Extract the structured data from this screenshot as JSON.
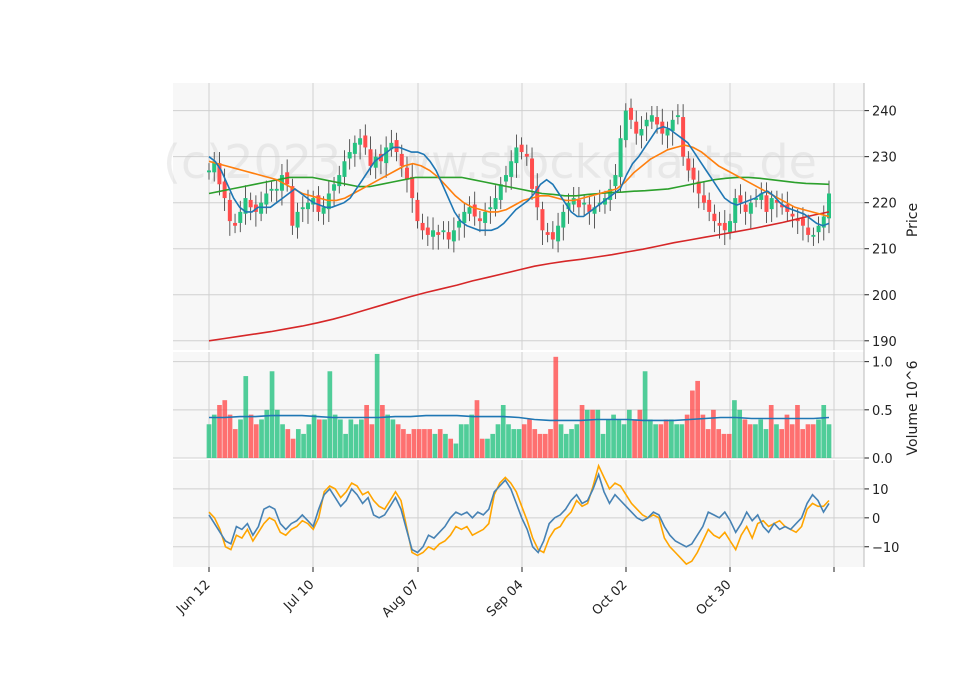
{
  "watermark": "(c)2023 www.stockcharts.de",
  "colors": {
    "up": "#26c281",
    "down": "#ff4d4d",
    "sma10": "#1f77b4",
    "sma20": "#ff7f0e",
    "sma50": "#2ca02c",
    "sma200": "#d62728",
    "vol_avg": "#1f77b4",
    "osc1": "#4682b4",
    "osc2": "#ffa500",
    "panel_bg": "#f7f7f7",
    "grid": "#d0d0d0"
  },
  "chart_data": {
    "type": "candlestick",
    "x_tick_labels": [
      "Jun 12",
      "Jul 10",
      "Aug 07",
      "Sep 04",
      "Oct 02",
      "Oct 30"
    ],
    "price_panel": {
      "ylabel": "Price",
      "ylim": [
        188,
        246
      ],
      "yticks": [
        190,
        200,
        210,
        220,
        230,
        240
      ],
      "close": [
        227,
        229,
        224,
        221,
        216,
        215,
        218,
        221,
        219,
        218,
        220,
        222,
        223,
        223,
        226,
        224,
        215,
        218,
        219,
        220,
        221,
        218,
        219,
        222,
        224,
        226,
        229,
        231,
        233,
        234,
        232,
        228,
        230,
        229,
        232,
        233,
        231,
        228,
        225,
        221,
        216,
        214,
        213,
        214,
        213,
        214,
        212,
        214,
        216,
        218,
        219,
        217,
        216,
        218,
        219,
        221,
        224,
        226,
        229,
        232,
        231,
        230,
        223,
        219,
        214,
        213,
        212,
        215,
        218,
        220,
        221,
        219,
        220,
        218,
        219,
        220,
        221,
        223,
        226,
        234,
        240,
        238,
        235,
        236,
        238,
        239,
        237,
        235,
        236,
        238,
        239,
        230,
        227,
        225,
        222,
        220,
        218,
        216,
        215,
        214,
        216,
        221,
        220,
        218,
        220,
        221,
        222,
        218,
        221,
        220,
        219,
        218,
        217,
        216,
        215,
        213,
        213,
        215,
        217,
        222
      ],
      "sma10": [
        230,
        229,
        227,
        224,
        221,
        219,
        218,
        218,
        219,
        219,
        219,
        220,
        221,
        222,
        223,
        222,
        221,
        220,
        219.5,
        219,
        219,
        219.5,
        220,
        221,
        223,
        225,
        227,
        229,
        230,
        231,
        232,
        232,
        231.5,
        231,
        231,
        230.5,
        229,
        227,
        224,
        221,
        218,
        216,
        215,
        214.5,
        214,
        214,
        214,
        214.5,
        215.5,
        217,
        218.5,
        219.5,
        220.5,
        222,
        224,
        225,
        224,
        222,
        220,
        218,
        217,
        217,
        218,
        219,
        220,
        221,
        222,
        223,
        226,
        228.5,
        230,
        232,
        234,
        236,
        236.5,
        236,
        235,
        234,
        233,
        231,
        229,
        227,
        225,
        223,
        221,
        220,
        219.5,
        220,
        220.5,
        221,
        222,
        222.5,
        221.5,
        220,
        219,
        218.5,
        218,
        217.5,
        216.5,
        215.5,
        215,
        215.5
      ],
      "sma20": [
        229,
        228.5,
        228,
        227.5,
        227,
        226.5,
        226,
        225.5,
        225,
        224,
        223,
        222,
        221.5,
        221,
        220.5,
        220.5,
        221,
        222,
        223,
        224,
        225,
        226,
        227,
        228,
        228.5,
        228,
        227,
        225.5,
        223.5,
        221.5,
        220,
        219,
        218.5,
        218,
        218,
        218.5,
        219.5,
        220.5,
        221,
        221.5,
        221.5,
        221,
        220.5,
        220.5,
        221,
        221.5,
        222,
        222.5,
        223,
        224.5,
        226.5,
        228,
        229.5,
        230.5,
        231.5,
        232,
        232.5,
        232,
        231,
        229.5,
        228,
        227,
        226,
        225,
        224,
        223,
        222,
        221,
        220,
        219,
        218.5,
        218,
        217.5,
        217
      ],
      "sma50": [
        222,
        222.5,
        223,
        223.5,
        224,
        224.5,
        225,
        225.5,
        225.5,
        225.5,
        225,
        224.5,
        224,
        223.5,
        223.5,
        224,
        224.5,
        225,
        225.5,
        225.5,
        225.5,
        225.5,
        225.5,
        225,
        224.5,
        224,
        223.5,
        223,
        222.5,
        222,
        221.8,
        221.5,
        221.5,
        221.8,
        222,
        222.2,
        222.3,
        222.5,
        222.6,
        222.8,
        223,
        223.5,
        224,
        224.5,
        225,
        225.3,
        225.5,
        225.5,
        225.3,
        225,
        224.7,
        224.4,
        224.2,
        224.1,
        224
      ],
      "sma200": [
        190,
        190.5,
        191,
        191.5,
        192,
        192.6,
        193.2,
        193.9,
        194.7,
        195.6,
        196.6,
        197.6,
        198.6,
        199.6,
        200.5,
        201.3,
        202.1,
        203,
        203.8,
        204.6,
        205.4,
        206.2,
        206.8,
        207.3,
        207.7,
        208.2,
        208.7,
        209.3,
        209.9,
        210.6,
        211.3,
        211.9,
        212.5,
        213.1,
        213.7,
        214.3,
        215,
        215.7,
        216.5,
        217.3,
        218
      ]
    },
    "volume_panel": {
      "ylabel": "Volume  10^6",
      "ylim": [
        0,
        1.1
      ],
      "yticks": [
        0.0,
        0.5,
        1.0
      ],
      "values": [
        0.35,
        0.45,
        0.55,
        0.6,
        0.45,
        0.3,
        0.4,
        0.85,
        0.45,
        0.35,
        0.4,
        0.5,
        0.9,
        0.5,
        0.35,
        0.3,
        0.2,
        0.3,
        0.25,
        0.35,
        0.45,
        0.4,
        0.4,
        0.9,
        0.45,
        0.4,
        0.25,
        0.4,
        0.35,
        0.4,
        0.55,
        0.35,
        1.08,
        0.55,
        0.45,
        0.4,
        0.35,
        0.3,
        0.25,
        0.3,
        0.3,
        0.3,
        0.3,
        0.25,
        0.3,
        0.25,
        0.2,
        0.15,
        0.35,
        0.35,
        0.45,
        0.6,
        0.2,
        0.2,
        0.25,
        0.35,
        0.55,
        0.35,
        0.3,
        0.3,
        0.35,
        0.4,
        0.3,
        0.25,
        0.25,
        0.3,
        1.05,
        0.35,
        0.25,
        0.3,
        0.35,
        0.55,
        0.5,
        0.5,
        0.5,
        0.25,
        0.4,
        0.45,
        0.4,
        0.35,
        0.5,
        0.4,
        0.5,
        0.9,
        0.4,
        0.35,
        0.35,
        0.4,
        0.4,
        0.35,
        0.35,
        0.45,
        0.7,
        0.8,
        0.45,
        0.3,
        0.5,
        0.3,
        0.25,
        0.25,
        0.6,
        0.5,
        0.4,
        0.35,
        0.35,
        0.4,
        0.3,
        0.55,
        0.35,
        0.3,
        0.45,
        0.35,
        0.55,
        0.3,
        0.35,
        0.35,
        0.4,
        0.55,
        0.35
      ],
      "avg": [
        0.42,
        0.42,
        0.43,
        0.43,
        0.44,
        0.44,
        0.44,
        0.43,
        0.42,
        0.42,
        0.42,
        0.42,
        0.43,
        0.43,
        0.44,
        0.44,
        0.44,
        0.43,
        0.43,
        0.43,
        0.42,
        0.4,
        0.39,
        0.39,
        0.39,
        0.4,
        0.4,
        0.4,
        0.39,
        0.39,
        0.39,
        0.4,
        0.41,
        0.42,
        0.42,
        0.41,
        0.41,
        0.41,
        0.41,
        0.41,
        0.42
      ]
    },
    "oscillator_panel": {
      "ylim": [
        -17,
        20
      ],
      "yticks": [
        -10,
        0,
        10
      ],
      "line1": [
        1,
        -2,
        -5,
        -8,
        -9,
        -3,
        -4,
        -2,
        -6,
        -3,
        3,
        4,
        3,
        -2,
        -4,
        -2,
        -1,
        1,
        -1,
        -3,
        3,
        8,
        10,
        7,
        4,
        6,
        10,
        8,
        5,
        7,
        1,
        0,
        1,
        4,
        7,
        3,
        -4,
        -11,
        -12,
        -10,
        -6,
        -7,
        -5,
        -3,
        0,
        2,
        1,
        2,
        0,
        2,
        1,
        3,
        9,
        11,
        13,
        10,
        5,
        0,
        -4,
        -10,
        -12,
        -8,
        -2,
        0,
        1,
        3,
        6,
        8,
        5,
        6,
        10,
        15,
        9,
        5,
        8,
        6,
        4,
        2,
        0,
        -1,
        0,
        2,
        1,
        -3,
        -6,
        -8,
        -9,
        -10,
        -9,
        -6,
        -3,
        2,
        1,
        0,
        2,
        -1,
        -5,
        -2,
        2,
        -1,
        1,
        -3,
        -5,
        -2,
        -4,
        -3,
        -4,
        -2,
        0,
        5,
        8,
        6,
        2,
        5
      ],
      "line2": [
        2,
        0,
        -4,
        -10,
        -11,
        -6,
        -7,
        -4,
        -8,
        -5,
        -2,
        0,
        -1,
        -5,
        -6,
        -4,
        -3,
        -1,
        -2,
        -4,
        0,
        9,
        11,
        10,
        7,
        9,
        12,
        11,
        8,
        9,
        6,
        4,
        3,
        6,
        9,
        6,
        -3,
        -12,
        -13,
        -12,
        -10,
        -11,
        -9,
        -8,
        -6,
        -3,
        -4,
        -3,
        -6,
        -5,
        -4,
        -2,
        8,
        12,
        14,
        12,
        9,
        4,
        -1,
        -7,
        -11,
        -12,
        -7,
        -4,
        -3,
        0,
        2,
        6,
        4,
        5,
        11,
        18,
        14,
        10,
        12,
        11,
        8,
        5,
        3,
        1,
        0,
        1,
        0,
        -7,
        -10,
        -12,
        -14,
        -16,
        -15,
        -12,
        -8,
        -4,
        -6,
        -7,
        -5,
        -8,
        -11,
        -6,
        -3,
        -7,
        -2,
        -1,
        -3,
        -2,
        -1,
        -3,
        -4,
        -5,
        -3,
        3,
        5,
        4,
        4,
        6
      ]
    }
  }
}
